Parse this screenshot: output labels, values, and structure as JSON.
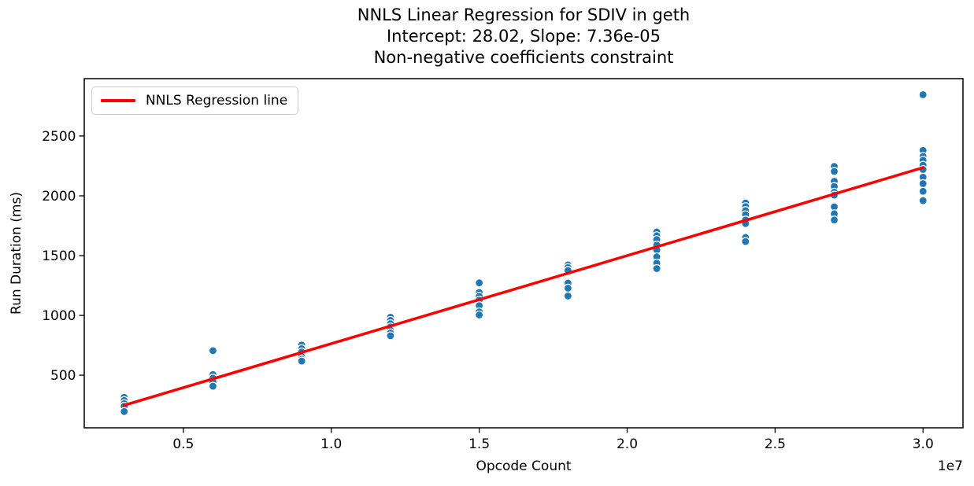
{
  "title": {
    "lines": [
      "NNLS Linear Regression for SDIV in geth",
      "Intercept: 28.02, Slope: 7.36e-05",
      "Non-negative coefficients constraint"
    ]
  },
  "legend": {
    "label": "NNLS Regression line",
    "position": "upper left",
    "line_color": "#ff0000"
  },
  "axes": {
    "xlabel": "Opcode Count",
    "ylabel": "Run Duration (ms)",
    "x_offset_text": "1e7"
  },
  "colors": {
    "scatter_fill": "#1f77b4",
    "scatter_edge": "#ffffff",
    "regression_line": "#ff0000",
    "spine": "#000000",
    "background": "#ffffff"
  },
  "chart_data": {
    "type": "scatter",
    "title": "NNLS Linear Regression for SDIV in geth | Intercept: 28.02, Slope: 7.36e-05 | Non-negative coefficients constraint",
    "xlabel": "Opcode Count",
    "ylabel": "Run Duration (ms)",
    "x_offset_text": "1e7",
    "xlim": [
      1650000,
      31350000
    ],
    "ylim": [
      60,
      2980
    ],
    "grid": false,
    "legend_position": "upper left",
    "xticks": {
      "values": [
        5000000,
        10000000,
        15000000,
        20000000,
        25000000,
        30000000
      ],
      "labels": [
        "0.5",
        "1.0",
        "1.5",
        "2.0",
        "2.5",
        "3.0"
      ]
    },
    "yticks": {
      "values": [
        500,
        1000,
        1500,
        2000,
        2500
      ],
      "labels": [
        "500",
        "1000",
        "1500",
        "2000",
        "2500"
      ]
    },
    "scatter_series": {
      "name": "observations",
      "color": "#1f77b4",
      "edge_color": "#ffffff",
      "marker_radius": 5,
      "clusters": [
        {
          "x": 3000000,
          "durations": [
            315,
            288,
            262,
            240,
            196
          ]
        },
        {
          "x": 6000000,
          "durations": [
            705,
            505,
            475,
            445,
            408
          ]
        },
        {
          "x": 9000000,
          "durations": [
            752,
            722,
            694,
            656,
            632,
            618
          ]
        },
        {
          "x": 12000000,
          "durations": [
            985,
            958,
            930,
            903,
            876,
            854,
            830
          ]
        },
        {
          "x": 15000000,
          "durations": [
            1272,
            1192,
            1160,
            1128,
            1082,
            1030,
            1004
          ]
        },
        {
          "x": 18000000,
          "durations": [
            1422,
            1400,
            1376,
            1270,
            1228,
            1162
          ]
        },
        {
          "x": 21000000,
          "durations": [
            1698,
            1666,
            1634,
            1588,
            1548,
            1490,
            1438,
            1392
          ]
        },
        {
          "x": 24000000,
          "durations": [
            1940,
            1910,
            1877,
            1842,
            1798,
            1768,
            1652,
            1618
          ]
        },
        {
          "x": 27000000,
          "durations": [
            2246,
            2204,
            2122,
            2078,
            2030,
            2006,
            1908,
            1850,
            1798
          ]
        },
        {
          "x": 30000000,
          "durations": [
            2846,
            2380,
            2330,
            2298,
            2256,
            2220,
            2156,
            2102,
            2038,
            1960
          ]
        }
      ]
    },
    "regression_series": {
      "name": "NNLS Regression line",
      "intercept": 28.02,
      "slope": 7.36e-05,
      "color": "#ff0000",
      "line_width": 3.5,
      "x": [
        3000000,
        30000000
      ],
      "y": [
        248.82,
        2236.02
      ]
    }
  }
}
